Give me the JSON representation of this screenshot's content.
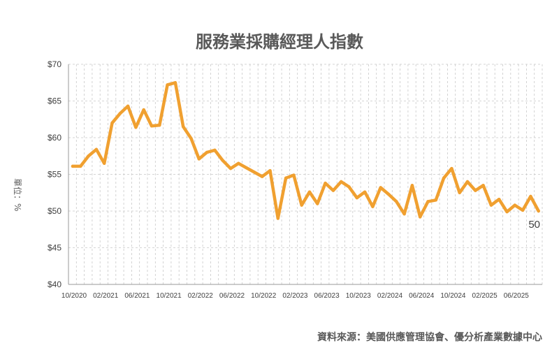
{
  "chart_data": {
    "type": "line",
    "title": "服務業採購經理人指數",
    "ylabel": "單位：%",
    "ylim": [
      40,
      70
    ],
    "yticks": [
      "$40",
      "$45",
      "$50",
      "$55",
      "$60",
      "$65",
      "$70"
    ],
    "ytick_values": [
      40,
      45,
      50,
      55,
      60,
      65,
      70
    ],
    "grid": true,
    "x_tick_labels": [
      "10/2020",
      "02/2021",
      "06/2021",
      "10/2021",
      "02/2022",
      "06/2022",
      "10/2022",
      "02/2023",
      "06/2023",
      "10/2023",
      "02/2024",
      "06/2024",
      "10/2024",
      "02/2025",
      "06/2025"
    ],
    "x_tick_indices": [
      0,
      4,
      8,
      12,
      16,
      20,
      24,
      28,
      32,
      36,
      40,
      44,
      48,
      52,
      56
    ],
    "series": [
      {
        "color": "#f0a030",
        "values": [
          56.1,
          56.1,
          57.5,
          58.4,
          56.5,
          62.0,
          63.3,
          64.3,
          61.4,
          63.8,
          61.6,
          61.7,
          67.2,
          67.5,
          61.5,
          59.9,
          57.1,
          58.0,
          58.3,
          56.9,
          55.8,
          56.5,
          55.9,
          55.3,
          54.7,
          55.5,
          49.0,
          54.5,
          54.9,
          50.8,
          52.6,
          51.0,
          53.8,
          52.8,
          54.0,
          53.3,
          51.8,
          52.6,
          50.6,
          53.2,
          52.3,
          51.3,
          49.6,
          53.5,
          49.2,
          51.3,
          51.5,
          54.5,
          55.8,
          52.5,
          54.0,
          52.8,
          53.5,
          50.8,
          51.6,
          49.9,
          50.8,
          50.1,
          52.0,
          50.0
        ]
      }
    ],
    "end_label": "50"
  },
  "footer": {
    "source": "資料來源：美國供應管理協會、優分析產業數據中心"
  }
}
